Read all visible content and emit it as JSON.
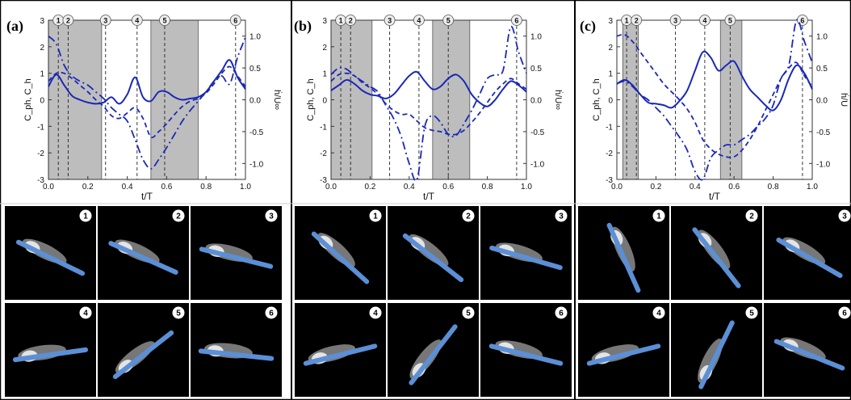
{
  "colors": {
    "line": "#1a28b8",
    "shade": "#bdbdbd",
    "bar": "#5b8fd6",
    "frame": "#000000"
  },
  "chart_data": [
    {
      "panel_label": "(a)",
      "type": "line",
      "xlabel": "t/T",
      "ylabel_left": "C_ph, C_h",
      "ylabel_right": "ḣ/U∞",
      "xlim": [
        0,
        1
      ],
      "ylim_left": [
        -3,
        3
      ],
      "ylim_right": [
        -1.25,
        1.25
      ],
      "x_ticks": [
        "0.0",
        "0.2",
        "0.4",
        "0.6",
        "0.8",
        "1.0"
      ],
      "y_ticks_left": [
        "-3",
        "-2",
        "-1",
        "0",
        "1",
        "2",
        "3"
      ],
      "y_ticks_right": [
        "-1.0",
        "-0.5",
        "0.0",
        "0.5",
        "1.0"
      ],
      "shaded_intervals": [
        [
          0.0,
          0.27
        ],
        [
          0.52,
          0.76
        ]
      ],
      "markers": [
        {
          "label": "1",
          "t": 0.05
        },
        {
          "label": "2",
          "t": 0.1
        },
        {
          "label": "3",
          "t": 0.29
        },
        {
          "label": "4",
          "t": 0.45
        },
        {
          "label": "5",
          "t": 0.59
        },
        {
          "label": "6",
          "t": 0.95
        }
      ],
      "series": [
        {
          "style": "solid",
          "axis": "left",
          "x": [
            0,
            0.04,
            0.08,
            0.12,
            0.16,
            0.2,
            0.24,
            0.28,
            0.32,
            0.36,
            0.4,
            0.44,
            0.48,
            0.52,
            0.56,
            0.6,
            0.64,
            0.68,
            0.72,
            0.76,
            0.8,
            0.84,
            0.88,
            0.92,
            0.96,
            1.0
          ],
          "y": [
            0.5,
            0.95,
            0.55,
            0.15,
            0.0,
            -0.1,
            -0.15,
            -0.1,
            0.1,
            -0.15,
            0.2,
            0.85,
            0.1,
            -0.05,
            0.3,
            0.3,
            0.1,
            0.0,
            0.05,
            0.1,
            0.3,
            0.7,
            1.1,
            1.5,
            0.85,
            0.4
          ]
        },
        {
          "style": "dashed",
          "axis": "left",
          "x": [
            0,
            0.04,
            0.08,
            0.12,
            0.16,
            0.2,
            0.24,
            0.28,
            0.32,
            0.36,
            0.4,
            0.44,
            0.48,
            0.52,
            0.56,
            0.6,
            0.64,
            0.68,
            0.72,
            0.76,
            0.8,
            0.84,
            0.88,
            0.92,
            0.96,
            1.0
          ],
          "y": [
            0.7,
            1.0,
            1.0,
            0.8,
            0.55,
            0.3,
            0.0,
            -0.25,
            -0.6,
            -0.7,
            -0.5,
            -0.3,
            -0.7,
            -1.4,
            -1.2,
            -0.9,
            -0.55,
            -0.25,
            -0.05,
            0.05,
            0.25,
            0.6,
            1.0,
            1.25,
            0.9,
            0.5
          ]
        },
        {
          "style": "dashdot",
          "axis": "left",
          "x": [
            0,
            0.04,
            0.08,
            0.12,
            0.16,
            0.2,
            0.24,
            0.28,
            0.32,
            0.36,
            0.4,
            0.44,
            0.48,
            0.52,
            0.56,
            0.6,
            0.64,
            0.68,
            0.72,
            0.76,
            0.8,
            0.84,
            0.88,
            0.92,
            0.96,
            1.0
          ],
          "y": [
            2.4,
            2.1,
            1.3,
            0.9,
            0.7,
            0.55,
            0.3,
            0.05,
            -0.3,
            -0.55,
            -0.8,
            -1.5,
            -2.25,
            -2.6,
            -2.25,
            -1.8,
            -1.3,
            -0.8,
            -0.4,
            -0.05,
            0.3,
            0.7,
            0.9,
            0.6,
            1.6,
            2.35
          ]
        }
      ]
    },
    {
      "panel_label": "(b)",
      "type": "line",
      "xlabel": "t/T",
      "ylabel_left": "C_ph, C_h",
      "ylabel_right": "ḣ/U∞",
      "xlim": [
        0,
        1
      ],
      "ylim_left": [
        -3,
        3
      ],
      "ylim_right": [
        -1.25,
        1.25
      ],
      "x_ticks": [
        "0.0",
        "0.2",
        "0.4",
        "0.6",
        "0.8",
        "1.0"
      ],
      "y_ticks_left": [
        "-3",
        "-2",
        "-1",
        "0",
        "1",
        "2",
        "3"
      ],
      "y_ticks_right": [
        "-1.0",
        "-0.5",
        "0.0",
        "0.5",
        "1.0"
      ],
      "shaded_intervals": [
        [
          0.0,
          0.21
        ],
        [
          0.52,
          0.71
        ]
      ],
      "markers": [
        {
          "label": "1",
          "t": 0.05
        },
        {
          "label": "2",
          "t": 0.1
        },
        {
          "label": "3",
          "t": 0.3
        },
        {
          "label": "4",
          "t": 0.45
        },
        {
          "label": "5",
          "t": 0.6
        },
        {
          "label": "6",
          "t": 0.95
        }
      ],
      "series": [
        {
          "style": "solid",
          "axis": "left",
          "x": [
            0,
            0.04,
            0.08,
            0.12,
            0.16,
            0.2,
            0.24,
            0.28,
            0.32,
            0.36,
            0.4,
            0.44,
            0.48,
            0.52,
            0.56,
            0.6,
            0.64,
            0.68,
            0.72,
            0.76,
            0.8,
            0.84,
            0.88,
            0.92,
            0.96,
            1.0
          ],
          "y": [
            0.35,
            0.55,
            0.75,
            0.6,
            0.35,
            0.2,
            0.15,
            0.05,
            0.2,
            0.55,
            0.9,
            1.05,
            0.7,
            0.4,
            0.5,
            0.8,
            0.95,
            0.7,
            0.2,
            -0.1,
            -0.25,
            0.0,
            0.4,
            0.7,
            0.55,
            0.3
          ]
        },
        {
          "style": "dashed",
          "axis": "left",
          "x": [
            0,
            0.04,
            0.08,
            0.12,
            0.16,
            0.2,
            0.24,
            0.28,
            0.32,
            0.36,
            0.4,
            0.44,
            0.48,
            0.52,
            0.56,
            0.6,
            0.64,
            0.68,
            0.72,
            0.76,
            0.8,
            0.84,
            0.88,
            0.92,
            0.96,
            1.0
          ],
          "y": [
            0.7,
            0.95,
            1.0,
            0.9,
            0.65,
            0.45,
            0.2,
            -0.15,
            -0.4,
            -0.55,
            -0.55,
            -0.8,
            -1.05,
            -1.15,
            -1.2,
            -1.3,
            -1.3,
            -1.15,
            -0.85,
            -0.5,
            -0.1,
            0.3,
            0.6,
            0.8,
            0.6,
            0.4
          ]
        },
        {
          "style": "dashdot",
          "axis": "left",
          "x": [
            0,
            0.04,
            0.08,
            0.12,
            0.16,
            0.2,
            0.24,
            0.28,
            0.32,
            0.36,
            0.4,
            0.44,
            0.48,
            0.52,
            0.56,
            0.6,
            0.64,
            0.68,
            0.72,
            0.76,
            0.8,
            0.84,
            0.88,
            0.92,
            0.96,
            1.0
          ],
          "y": [
            0.95,
            1.2,
            1.15,
            0.9,
            0.7,
            0.5,
            0.3,
            -0.2,
            -0.7,
            -1.4,
            -2.4,
            -3.0,
            -1.0,
            -0.6,
            -0.85,
            -1.3,
            -1.35,
            -0.9,
            -0.4,
            0.2,
            0.8,
            0.95,
            1.1,
            2.75,
            1.8,
            1.0
          ]
        }
      ]
    },
    {
      "panel_label": "(c)",
      "type": "line",
      "xlabel": "t/T",
      "ylabel_left": "C_ph, C_h",
      "ylabel_right": "ḣ/U",
      "xlim": [
        0,
        1
      ],
      "ylim_left": [
        -3,
        3
      ],
      "ylim_right": [
        -1.25,
        1.25
      ],
      "x_ticks": [
        "0.0",
        "0.2",
        "0.4",
        "0.6",
        "0.8",
        "1.0"
      ],
      "y_ticks_left": [
        "-3",
        "-2",
        "-1",
        "0",
        "1",
        "2",
        "3"
      ],
      "y_ticks_right": [
        "-1.0",
        "-0.5",
        "0.0",
        "0.5",
        "1.0"
      ],
      "shaded_intervals": [
        [
          0.03,
          0.11
        ],
        [
          0.53,
          0.64
        ]
      ],
      "markers": [
        {
          "label": "1",
          "t": 0.05
        },
        {
          "label": "2",
          "t": 0.1
        },
        {
          "label": "3",
          "t": 0.3
        },
        {
          "label": "4",
          "t": 0.45
        },
        {
          "label": "5",
          "t": 0.58
        },
        {
          "label": "6",
          "t": 0.95
        }
      ],
      "series": [
        {
          "style": "solid",
          "axis": "left",
          "x": [
            0,
            0.04,
            0.08,
            0.12,
            0.16,
            0.2,
            0.24,
            0.28,
            0.32,
            0.36,
            0.4,
            0.44,
            0.48,
            0.52,
            0.56,
            0.6,
            0.64,
            0.68,
            0.72,
            0.76,
            0.8,
            0.84,
            0.88,
            0.92,
            0.96,
            1.0
          ],
          "y": [
            0.6,
            0.75,
            0.55,
            0.2,
            -0.1,
            -0.15,
            -0.2,
            -0.3,
            -0.05,
            0.35,
            1.1,
            1.8,
            1.6,
            1.1,
            1.3,
            1.45,
            0.9,
            0.4,
            0.1,
            -0.2,
            -0.4,
            0.0,
            0.8,
            1.3,
            1.0,
            0.4
          ]
        },
        {
          "style": "dashed",
          "axis": "left",
          "x": [
            0,
            0.04,
            0.08,
            0.12,
            0.16,
            0.2,
            0.24,
            0.28,
            0.32,
            0.36,
            0.4,
            0.44,
            0.48,
            0.52,
            0.56,
            0.6,
            0.64,
            0.68,
            0.72,
            0.76,
            0.8,
            0.84,
            0.88,
            0.92,
            0.96,
            1.0
          ],
          "y": [
            2.4,
            2.45,
            2.2,
            1.8,
            1.4,
            1.0,
            0.6,
            0.3,
            0.0,
            -0.35,
            -0.85,
            -1.5,
            -1.85,
            -2.05,
            -2.15,
            -2.15,
            -1.9,
            -1.5,
            -1.0,
            -0.4,
            0.2,
            0.8,
            1.2,
            1.4,
            0.9,
            0.5
          ]
        },
        {
          "style": "dashdot",
          "axis": "left",
          "x": [
            0,
            0.04,
            0.08,
            0.12,
            0.16,
            0.2,
            0.24,
            0.28,
            0.32,
            0.36,
            0.4,
            0.44,
            0.48,
            0.52,
            0.56,
            0.6,
            0.64,
            0.68,
            0.72,
            0.76,
            0.8,
            0.84,
            0.88,
            0.92,
            0.96,
            1.0
          ],
          "y": [
            0.6,
            0.7,
            0.5,
            0.2,
            0.0,
            -0.3,
            -0.6,
            -1.0,
            -1.4,
            -1.9,
            -2.7,
            -3.0,
            -2.2,
            -1.9,
            -1.7,
            -1.7,
            -1.5,
            -1.3,
            -1.0,
            -0.7,
            -0.2,
            0.8,
            1.3,
            3.0,
            2.2,
            1.4
          ]
        }
      ]
    }
  ],
  "snapshots": [
    {
      "labels": [
        "1",
        "2",
        "3",
        "4",
        "5",
        "6"
      ],
      "plate_angles_deg": [
        26,
        24,
        14,
        -8,
        -38,
        6
      ]
    },
    {
      "labels": [
        "1",
        "2",
        "3",
        "4",
        "5",
        "6"
      ],
      "plate_angles_deg": [
        42,
        38,
        16,
        -14,
        -52,
        14
      ]
    },
    {
      "labels": [
        "1",
        "2",
        "3",
        "4",
        "5",
        "6"
      ],
      "plate_angles_deg": [
        66,
        52,
        30,
        -14,
        -64,
        22
      ]
    }
  ]
}
